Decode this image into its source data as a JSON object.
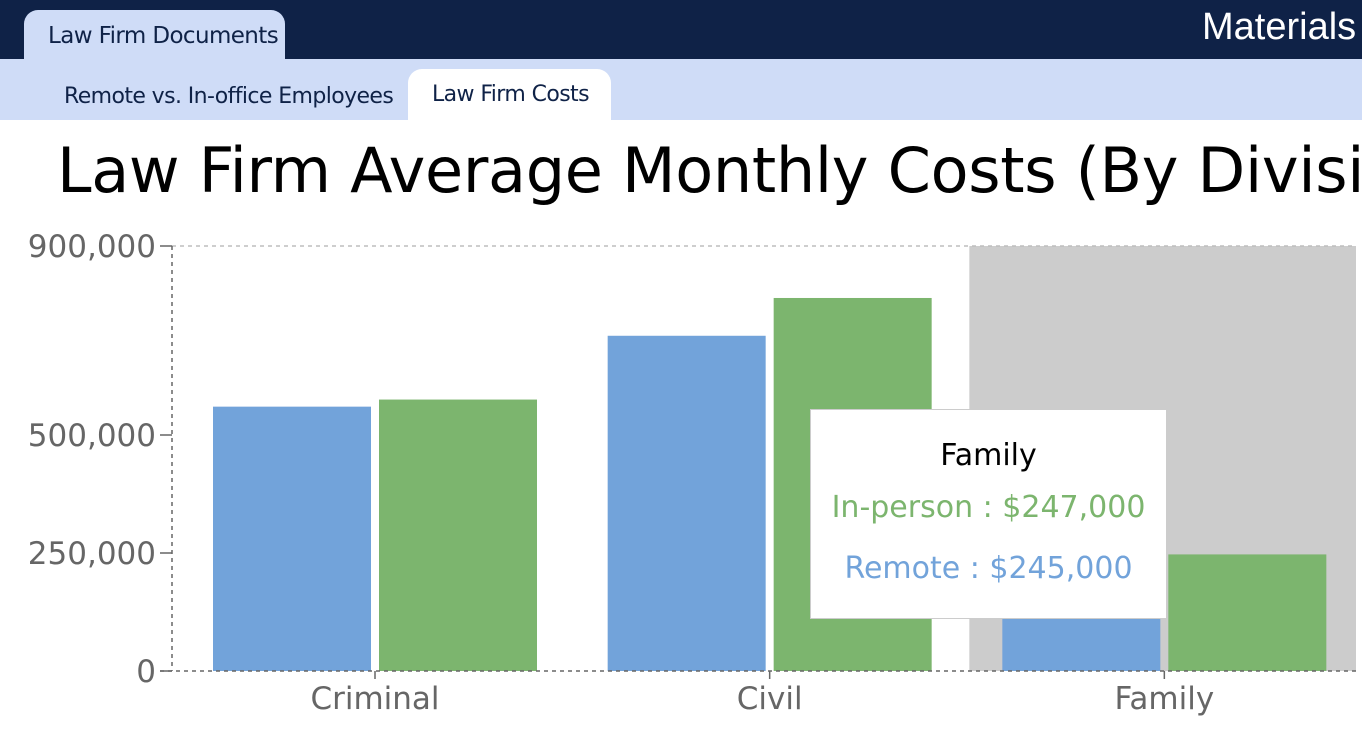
{
  "header": {
    "tab_label": "Law Firm Documents",
    "app_title": "Materials"
  },
  "tabs": [
    {
      "label": "Remote vs. In-office Employees",
      "active": false
    },
    {
      "label": "Law Firm Costs",
      "active": true
    }
  ],
  "colors": {
    "remote": "#72a3da",
    "in_person": "#7cb56e",
    "hover_band": "#cccccc",
    "header_bg": "#0f2247",
    "tab_bg": "#cfdcf7"
  },
  "chart_data": {
    "type": "bar",
    "title": "Law Firm Average Monthly Costs (By Division)",
    "categories": [
      "Criminal",
      "Civil",
      "Family"
    ],
    "series": [
      {
        "name": "Remote",
        "values": [
          560000,
          710000,
          245000
        ]
      },
      {
        "name": "In-person",
        "values": [
          575000,
          790000,
          247000
        ]
      }
    ],
    "yticks": [
      0,
      250000,
      500000,
      900000
    ],
    "ytick_labels": [
      "0",
      "250,000",
      "500,000",
      "900,000"
    ],
    "ylim": [
      0,
      900000
    ],
    "xlabel": "",
    "ylabel": "",
    "grid": "dashed",
    "hovered_category": "Family"
  },
  "tooltip": {
    "label": "Family",
    "in_person_text": "In-person : $247,000",
    "remote_text": "Remote : $245,000"
  }
}
